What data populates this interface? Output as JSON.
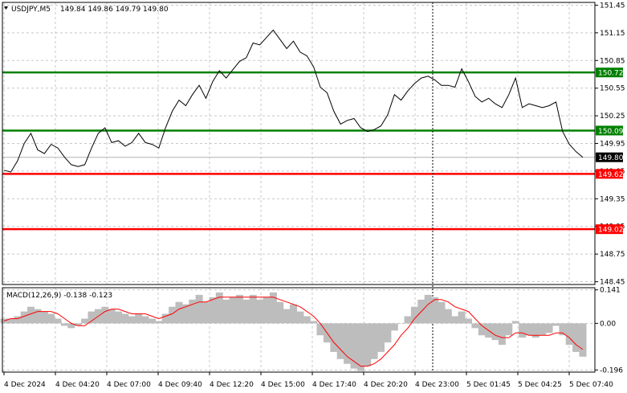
{
  "header": {
    "symbol": "USDJPY,M5",
    "ohlc": "149.84 149.86 149.79 149.80",
    "macd_label": "MACD(12,26,9) -0.138 -0.123"
  },
  "chart_data": {
    "type": "line",
    "price_axis": {
      "ticks": [
        "151.45",
        "151.15",
        "150.85",
        "150.55",
        "150.25",
        "149.95",
        "149.65",
        "149.35",
        "149.05",
        "148.75",
        "148.45"
      ],
      "ylim": [
        148.42,
        151.48
      ]
    },
    "time_axis": {
      "labels": [
        "4 Dec 2024",
        "4 Dec 04:20",
        "4 Dec 07:00",
        "4 Dec 09:40",
        "4 Dec 12:20",
        "4 Dec 15:00",
        "4 Dec 17:40",
        "4 Dec 20:20",
        "4 Dec 23:00",
        "5 Dec 01:45",
        "5 Dec 04:25",
        "5 Dec 07:40"
      ]
    },
    "levels": [
      {
        "value": 150.72,
        "label": "150.72",
        "color": "#008000"
      },
      {
        "value": 150.09,
        "label": "150.09",
        "color": "#008000"
      },
      {
        "value": 149.62,
        "label": "149.62",
        "color": "#ff0000"
      },
      {
        "value": 149.02,
        "label": "149.02",
        "color": "#ff0000"
      }
    ],
    "current_price": {
      "value": 149.8,
      "label": "149.80"
    },
    "price_series": [
      149.66,
      149.64,
      149.76,
      149.95,
      150.06,
      149.88,
      149.84,
      149.94,
      149.9,
      149.8,
      149.72,
      149.7,
      149.72,
      149.9,
      150.06,
      150.12,
      149.96,
      149.98,
      149.92,
      149.96,
      150.06,
      149.96,
      149.94,
      149.9,
      150.12,
      150.3,
      150.42,
      150.36,
      150.48,
      150.58,
      150.44,
      150.62,
      150.74,
      150.66,
      150.75,
      150.84,
      150.88,
      151.04,
      151.02,
      151.1,
      151.18,
      151.08,
      150.98,
      151.06,
      150.94,
      150.9,
      150.78,
      150.56,
      150.5,
      150.3,
      150.16,
      150.2,
      150.22,
      150.12,
      150.08,
      150.1,
      150.14,
      150.26,
      150.48,
      150.42,
      150.52,
      150.6,
      150.66,
      150.68,
      150.64,
      150.58,
      150.58,
      150.56,
      150.76,
      150.62,
      150.46,
      150.4,
      150.44,
      150.38,
      150.34,
      150.48,
      150.66,
      150.34,
      150.38,
      150.36,
      150.34,
      150.36,
      150.4,
      150.08,
      149.94,
      149.86,
      149.8
    ],
    "macd": {
      "ticks": [
        "0.141",
        "0.00",
        "-0.196"
      ],
      "ylim": [
        -0.205,
        0.15
      ],
      "histogram": [
        0.02,
        0.02,
        0.03,
        0.05,
        0.07,
        0.06,
        0.05,
        0.04,
        0.02,
        -0.01,
        -0.02,
        -0.01,
        0.02,
        0.05,
        0.06,
        0.07,
        0.06,
        0.05,
        0.04,
        0.03,
        0.04,
        0.03,
        0.02,
        0.01,
        0.04,
        0.07,
        0.09,
        0.08,
        0.1,
        0.12,
        0.09,
        0.11,
        0.13,
        0.1,
        0.11,
        0.12,
        0.1,
        0.12,
        0.1,
        0.11,
        0.13,
        0.09,
        0.06,
        0.08,
        0.05,
        0.03,
        0.01,
        -0.05,
        -0.08,
        -0.12,
        -0.15,
        -0.17,
        -0.19,
        -0.2,
        -0.18,
        -0.15,
        -0.12,
        -0.08,
        -0.03,
        0.0,
        0.03,
        0.07,
        0.1,
        0.12,
        0.11,
        0.09,
        0.06,
        0.03,
        0.05,
        0.02,
        -0.02,
        -0.05,
        -0.06,
        -0.07,
        -0.09,
        -0.05,
        0.01,
        -0.06,
        -0.05,
        -0.06,
        -0.05,
        -0.04,
        -0.01,
        -0.05,
        -0.09,
        -0.12,
        -0.14
      ],
      "signal": [
        0.01,
        0.02,
        0.02,
        0.03,
        0.04,
        0.05,
        0.05,
        0.05,
        0.04,
        0.02,
        0.0,
        -0.01,
        -0.01,
        0.01,
        0.03,
        0.05,
        0.06,
        0.06,
        0.05,
        0.04,
        0.04,
        0.04,
        0.03,
        0.02,
        0.03,
        0.04,
        0.06,
        0.07,
        0.08,
        0.09,
        0.09,
        0.1,
        0.11,
        0.11,
        0.11,
        0.11,
        0.11,
        0.11,
        0.11,
        0.11,
        0.11,
        0.1,
        0.09,
        0.08,
        0.07,
        0.05,
        0.03,
        0.0,
        -0.04,
        -0.08,
        -0.11,
        -0.14,
        -0.16,
        -0.18,
        -0.18,
        -0.17,
        -0.15,
        -0.12,
        -0.09,
        -0.05,
        -0.02,
        0.02,
        0.05,
        0.08,
        0.1,
        0.1,
        0.09,
        0.07,
        0.06,
        0.05,
        0.02,
        -0.01,
        -0.03,
        -0.05,
        -0.06,
        -0.06,
        -0.04,
        -0.04,
        -0.05,
        -0.05,
        -0.05,
        -0.05,
        -0.04,
        -0.04,
        -0.06,
        -0.09,
        -0.11
      ]
    }
  }
}
